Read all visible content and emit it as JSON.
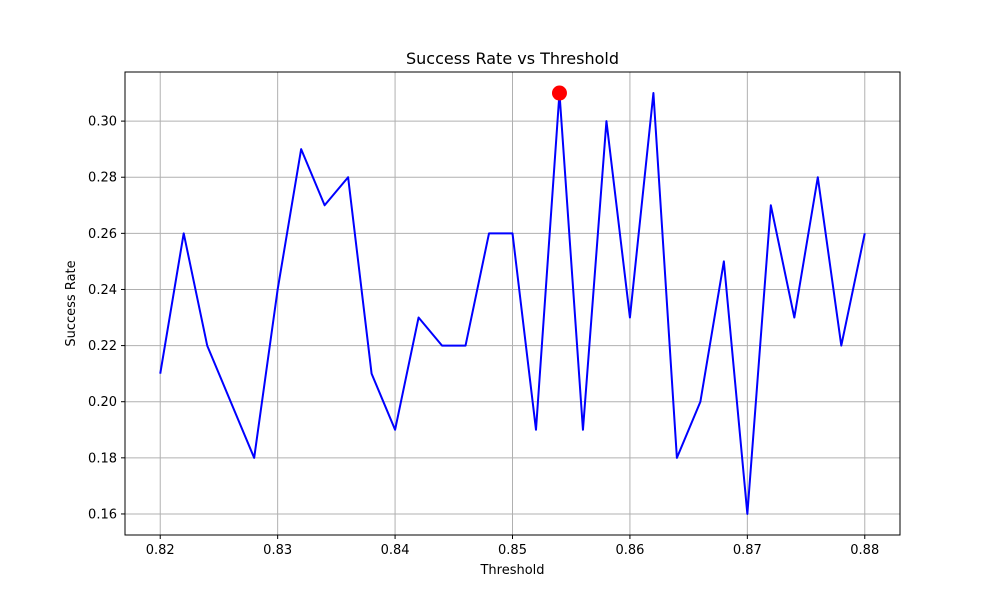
{
  "chart_data": {
    "type": "line",
    "title": "Success Rate vs Threshold",
    "xlabel": "Threshold",
    "ylabel": "Success Rate",
    "xlim": [
      0.817,
      0.883
    ],
    "ylim": [
      0.1525,
      0.3175
    ],
    "x_ticks": [
      "0.82",
      "0.83",
      "0.84",
      "0.85",
      "0.86",
      "0.87",
      "0.88"
    ],
    "y_ticks": [
      "0.16",
      "0.18",
      "0.20",
      "0.22",
      "0.24",
      "0.26",
      "0.28",
      "0.30"
    ],
    "grid": true,
    "series": [
      {
        "color": "#0000ff",
        "x": [
          0.82,
          0.822,
          0.824,
          0.826,
          0.828,
          0.83,
          0.832,
          0.834,
          0.836,
          0.838,
          0.84,
          0.842,
          0.844,
          0.846,
          0.848,
          0.85,
          0.852,
          0.854,
          0.856,
          0.858,
          0.86,
          0.862,
          0.864,
          0.866,
          0.868,
          0.87,
          0.872,
          0.874,
          0.876,
          0.878,
          0.88
        ],
        "y": [
          0.21,
          0.26,
          0.22,
          0.2,
          0.18,
          0.24,
          0.29,
          0.27,
          0.28,
          0.21,
          0.19,
          0.23,
          0.22,
          0.22,
          0.26,
          0.26,
          0.19,
          0.31,
          0.19,
          0.3,
          0.23,
          0.31,
          0.18,
          0.2,
          0.25,
          0.16,
          0.27,
          0.23,
          0.28,
          0.22,
          0.26
        ]
      }
    ],
    "highlight": {
      "x": 0.854,
      "y": 0.31,
      "color": "#ff0000"
    }
  }
}
